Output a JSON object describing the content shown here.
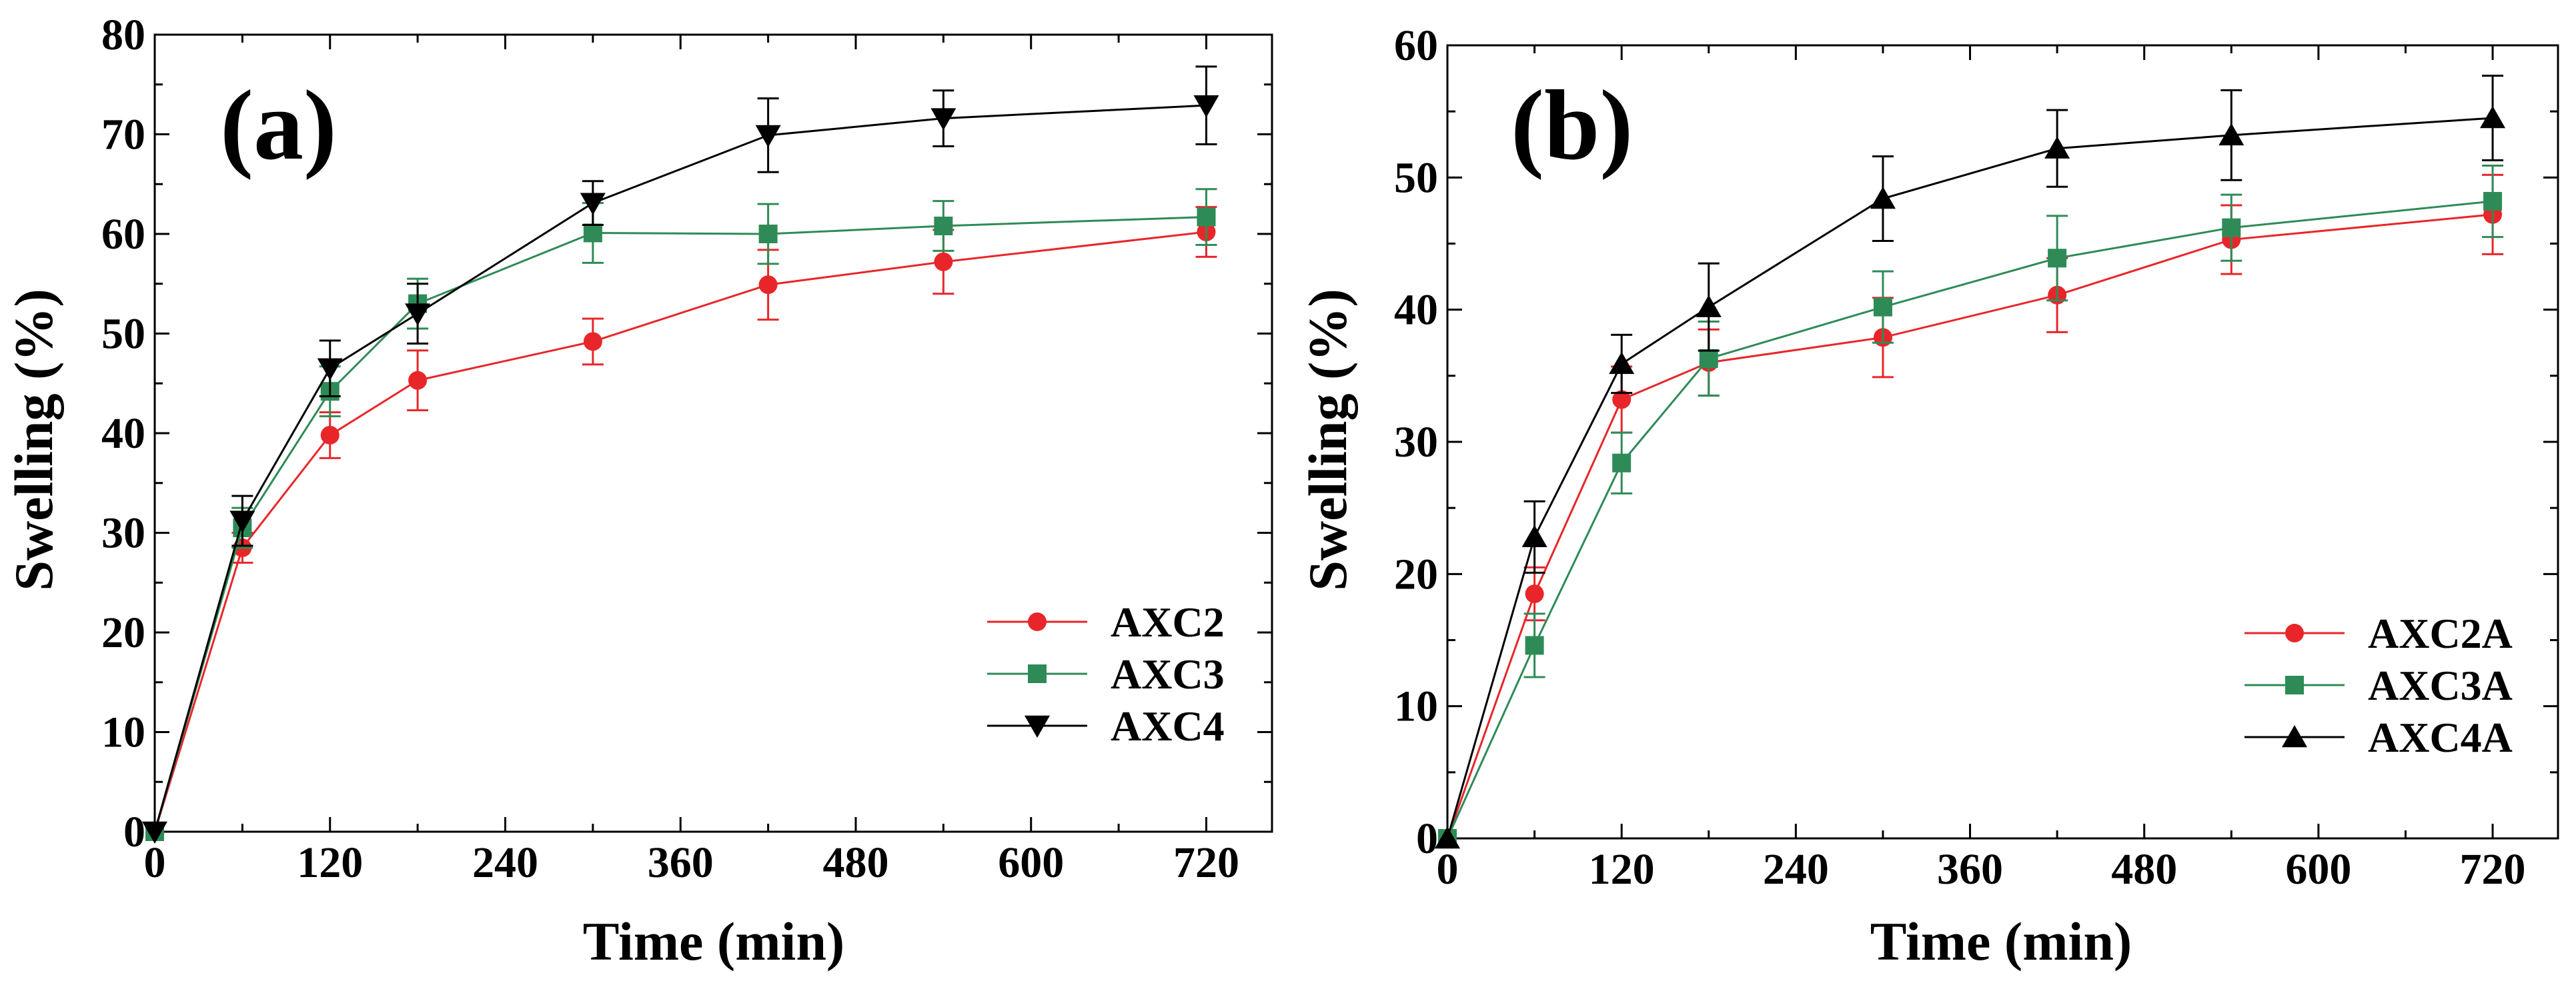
{
  "chart_data": [
    {
      "id": "a",
      "type": "line",
      "panel_label": "(a)",
      "xlabel": "Time (min)",
      "ylabel": "Swelling (%)",
      "xlim": [
        0,
        765
      ],
      "ylim": [
        0,
        80
      ],
      "xticks": [
        0,
        120,
        240,
        360,
        480,
        600,
        720
      ],
      "yticks": [
        0,
        10,
        20,
        30,
        40,
        50,
        60,
        70,
        80
      ],
      "legend_position": "bottom-right",
      "x": [
        0,
        60,
        120,
        180,
        300,
        420,
        540,
        720
      ],
      "series": [
        {
          "name": "AXC2",
          "color": "#e8262a",
          "marker": "circle",
          "values": [
            0,
            28.5,
            39.8,
            45.3,
            49.2,
            54.9,
            57.2,
            60.2
          ],
          "errors": [
            0,
            1.5,
            2.3,
            3.0,
            2.3,
            3.5,
            3.2,
            2.5
          ]
        },
        {
          "name": "AXC3",
          "color": "#2e8b57",
          "marker": "square",
          "values": [
            0,
            30.5,
            44.2,
            53.0,
            60.1,
            60.0,
            60.8,
            61.7
          ],
          "errors": [
            0,
            2.0,
            2.5,
            2.5,
            3.0,
            3.0,
            2.5,
            2.8
          ]
        },
        {
          "name": "AXC4",
          "color": "#000000",
          "marker": "triangle-down",
          "values": [
            0,
            31.2,
            46.5,
            52.0,
            63.1,
            69.9,
            71.6,
            72.9
          ],
          "errors": [
            0,
            2.5,
            2.8,
            3.0,
            2.2,
            3.7,
            2.8,
            3.9
          ]
        }
      ]
    },
    {
      "id": "b",
      "type": "line",
      "panel_label": "(b)",
      "xlabel": "Time (min)",
      "ylabel": "Swelling (%)",
      "xlim": [
        0,
        765
      ],
      "ylim": [
        0,
        60
      ],
      "xticks": [
        0,
        120,
        240,
        360,
        480,
        600,
        720
      ],
      "yticks": [
        0,
        10,
        20,
        30,
        40,
        50,
        60
      ],
      "legend_position": "bottom-right",
      "x": [
        0,
        60,
        120,
        180,
        300,
        420,
        540,
        720
      ],
      "series": [
        {
          "name": "AXC2A",
          "color": "#e8262a",
          "marker": "circle",
          "values": [
            0,
            18.5,
            33.2,
            36.0,
            37.9,
            41.1,
            45.3,
            47.2
          ],
          "errors": [
            0,
            2.0,
            2.5,
            2.5,
            3.0,
            2.8,
            2.6,
            3.0
          ]
        },
        {
          "name": "AXC3A",
          "color": "#2e8b57",
          "marker": "square",
          "values": [
            0,
            14.6,
            28.4,
            36.3,
            40.2,
            43.9,
            46.2,
            48.2
          ],
          "errors": [
            0,
            2.4,
            2.3,
            2.8,
            2.7,
            3.2,
            2.5,
            2.7
          ]
        },
        {
          "name": "AXC4A",
          "color": "#000000",
          "marker": "triangle-up",
          "values": [
            0,
            22.8,
            35.9,
            40.2,
            48.4,
            52.2,
            53.2,
            54.5
          ],
          "errors": [
            0,
            2.7,
            2.2,
            3.3,
            3.2,
            2.9,
            3.4,
            3.2
          ]
        }
      ]
    }
  ]
}
